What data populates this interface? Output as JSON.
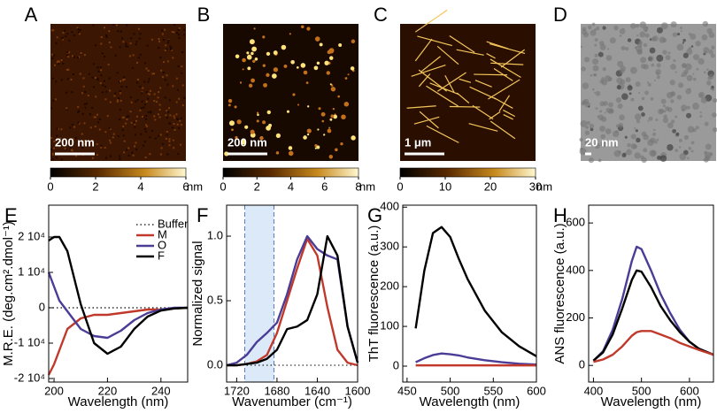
{
  "images": [
    {
      "label": "A",
      "scale_bar": "200 nm",
      "colorbar": {
        "lim": [
          0,
          6
        ],
        "ticks": [
          0,
          2,
          4,
          6
        ],
        "unit": "nm"
      }
    },
    {
      "label": "B",
      "scale_bar": "200 nm",
      "colorbar": {
        "lim": [
          0,
          8
        ],
        "ticks": [
          0,
          2,
          4,
          6,
          8
        ],
        "unit": "nm"
      }
    },
    {
      "label": "C",
      "scale_bar": "1 μm",
      "colorbar": {
        "lim": [
          0,
          30
        ],
        "ticks": [
          0,
          10,
          20,
          30
        ],
        "unit": "nm"
      }
    },
    {
      "label": "D",
      "scale_bar": "20 nm"
    }
  ],
  "chart_data": [
    {
      "type": "line",
      "panel": "E",
      "xlabel": "Wavelength (nm)",
      "ylabel": "M.R.E. (deg.cm².dmol⁻¹)",
      "xlim": [
        198,
        250
      ],
      "xticks": [
        200,
        220,
        240
      ],
      "ylim": [
        -21000,
        29000
      ],
      "yticks": [
        {
          "value": -20000,
          "label": "-2 10⁴"
        },
        {
          "value": -10000,
          "label": "-1 10⁴"
        },
        0,
        {
          "value": 10000,
          "label": "1 10⁴"
        },
        {
          "value": 20000,
          "label": "2 10⁴"
        }
      ],
      "legend": "upper right",
      "x": [
        198,
        200,
        202,
        205,
        210,
        215,
        220,
        225,
        230,
        235,
        240,
        245,
        250
      ],
      "series": [
        {
          "name": "Buffer",
          "color": "#000000",
          "dash": "dotted",
          "values": [
            0,
            0,
            0,
            0,
            0,
            0,
            0,
            0,
            0,
            0,
            0,
            0,
            0
          ]
        },
        {
          "name": "M",
          "color": "#c0392b",
          "values": [
            -19000,
            -16000,
            -12000,
            -6000,
            -3000,
            -2000,
            -2000,
            -1500,
            -1000,
            -500,
            -500,
            -200,
            0
          ]
        },
        {
          "name": "O",
          "color": "#4b3c96",
          "values": [
            10000,
            6000,
            2000,
            -1000,
            -6000,
            -8000,
            -8500,
            -6500,
            -3500,
            -1500,
            -500,
            0,
            0
          ]
        },
        {
          "name": "F",
          "color": "#000000",
          "values": [
            19000,
            20000,
            20000,
            16000,
            1000,
            -10000,
            -13000,
            -11000,
            -6000,
            -2500,
            -800,
            -200,
            0
          ]
        }
      ]
    },
    {
      "type": "line",
      "panel": "F",
      "xlabel": "Wavenumber (cm⁻¹)",
      "ylabel": "Normalized signal",
      "xlim": [
        1730,
        1600
      ],
      "xticks": [
        1720,
        1680,
        1640,
        1600
      ],
      "ylim": [
        -0.13,
        1.24
      ],
      "yticks": [
        {
          "value": 0,
          "label": "0.0"
        },
        {
          "value": 0.5,
          "label": "0.5"
        },
        {
          "value": 1,
          "label": "1.0"
        }
      ],
      "highlight": [
        1712,
        1683
      ],
      "zero_line": true,
      "x": [
        1730,
        1720,
        1710,
        1700,
        1690,
        1680,
        1670,
        1660,
        1650,
        1640,
        1630,
        1620,
        1610,
        1600
      ],
      "series": [
        {
          "color": "#c0392b",
          "values": [
            0,
            0,
            0.01,
            0.03,
            0.08,
            0.25,
            0.5,
            0.75,
            0.98,
            0.85,
            0.45,
            0.12,
            0.02,
            0
          ]
        },
        {
          "color": "#4b3c96",
          "values": [
            0,
            0.02,
            0.08,
            0.18,
            0.25,
            0.33,
            0.55,
            0.82,
            1.0,
            0.9,
            0.85,
            0.82,
            0.3,
            0.02
          ]
        },
        {
          "color": "#000000",
          "values": [
            0,
            0,
            0.01,
            0.02,
            0.05,
            0.12,
            0.28,
            0.3,
            0.35,
            0.55,
            1.0,
            0.85,
            0.3,
            0.02
          ]
        }
      ]
    },
    {
      "type": "line",
      "panel": "G",
      "xlabel": "Wavelength (nm)",
      "ylabel": "ThT fluorescence (a.u.)",
      "xlim": [
        445,
        600
      ],
      "xticks": [
        450,
        500,
        550,
        600
      ],
      "ylim": [
        -40,
        405
      ],
      "yticks": [
        0,
        100,
        200,
        300,
        400
      ],
      "x": [
        460,
        470,
        480,
        490,
        500,
        510,
        520,
        540,
        560,
        580,
        600
      ],
      "series": [
        {
          "color": "#000000",
          "values": [
            95,
            240,
            335,
            350,
            325,
            270,
            220,
            140,
            85,
            50,
            25
          ]
        },
        {
          "color": "#4b3c96",
          "values": [
            10,
            20,
            28,
            32,
            30,
            27,
            22,
            15,
            10,
            6,
            4
          ]
        },
        {
          "color": "#c0392b",
          "values": [
            2,
            2,
            2,
            2,
            2,
            2,
            2,
            2,
            2,
            2,
            2
          ]
        }
      ]
    },
    {
      "type": "line",
      "panel": "H",
      "xlabel": "Wavelength (nm)",
      "ylabel": "ANS fluorescence (a.u.)",
      "xlim": [
        390,
        650
      ],
      "xticks": [
        400,
        500,
        600
      ],
      "ylim": [
        -70,
        675
      ],
      "yticks": [
        0,
        200,
        400,
        600
      ],
      "x": [
        400,
        420,
        440,
        460,
        480,
        490,
        500,
        520,
        540,
        560,
        580,
        600,
        620,
        650
      ],
      "series": [
        {
          "color": "#4b3c96",
          "values": [
            20,
            60,
            150,
            280,
            440,
            500,
            490,
            400,
            300,
            220,
            150,
            100,
            70,
            45
          ]
        },
        {
          "color": "#000000",
          "values": [
            20,
            55,
            130,
            240,
            360,
            400,
            395,
            330,
            250,
            190,
            140,
            100,
            70,
            45
          ]
        },
        {
          "color": "#c0392b",
          "values": [
            15,
            25,
            45,
            80,
            125,
            140,
            145,
            145,
            130,
            115,
            95,
            80,
            65,
            45
          ]
        }
      ]
    }
  ]
}
